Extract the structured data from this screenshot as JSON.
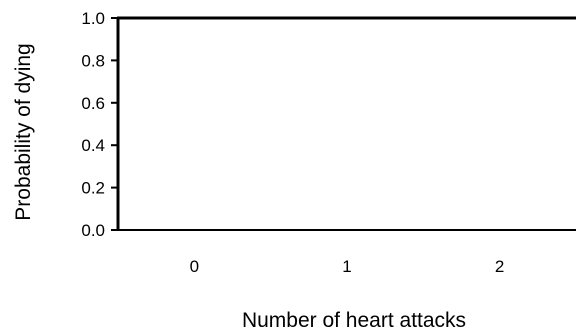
{
  "chart_data": {
    "type": "line",
    "title": "",
    "xlabel": "Number of heart attacks",
    "ylabel": "Probability of dying",
    "categories": [
      "0",
      "1",
      "2"
    ],
    "x_tick_labels": [
      "0",
      "1",
      "2"
    ],
    "y_tick_labels": [
      "0.0",
      "0.2",
      "0.4",
      "0.6",
      "0.8",
      "1.0"
    ],
    "y_ticks": [
      0.0,
      0.2,
      0.4,
      0.6,
      0.8,
      1.0
    ],
    "ylim": [
      0.0,
      1.0
    ],
    "series": [],
    "grid": false,
    "legend": "none",
    "colors": {
      "axis": "#000000",
      "text": "#000000",
      "background": "#ffffff"
    }
  }
}
